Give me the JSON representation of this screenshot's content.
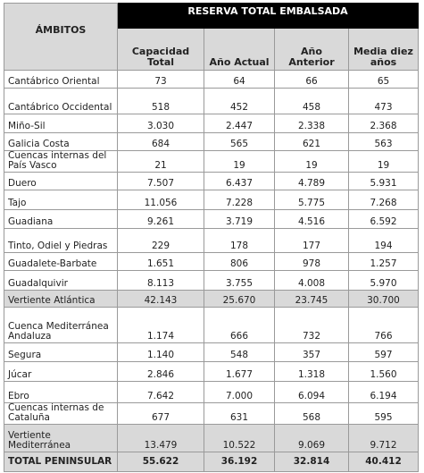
{
  "header": {
    "title": "RESERVA TOTAL EMBALSADA",
    "ambitos": "ÁMBITOS",
    "columns": [
      "Capacidad Total",
      "Año Actual",
      "Año Anterior",
      "Media diez años"
    ]
  },
  "rows": [
    [
      "Cantábrico Oriental",
      "73",
      "64",
      "66",
      "65"
    ],
    [
      "Cantábrico Occidental",
      "518",
      "452",
      "458",
      "473"
    ],
    [
      "Miño-Sil",
      "3.030",
      "2.447",
      "2.338",
      "2.368"
    ],
    [
      "Galicia Costa",
      "684",
      "565",
      "621",
      "563"
    ],
    [
      "Cuencas internas del País Vasco",
      "21",
      "19",
      "19",
      "19"
    ],
    [
      "Duero",
      "7.507",
      "6.437",
      "4.789",
      "5.931"
    ],
    [
      "Tajo",
      "11.056",
      "7.228",
      "5.775",
      "7.268"
    ],
    [
      "Guadiana",
      "9.261",
      "3.719",
      "4.516",
      "6.592"
    ],
    [
      "Tinto, Odiel y Piedras",
      "229",
      "178",
      "177",
      "194"
    ],
    [
      "Guadalete-Barbate",
      "1.651",
      "806",
      "978",
      "1.257"
    ],
    [
      "Guadalquivir",
      "8.113",
      "3.755",
      "4.008",
      "5.970"
    ],
    [
      "Vertiente Atlántica",
      "42.143",
      "25.670",
      "23.745",
      "30.700"
    ],
    [
      "Cuenca Mediterránea Andaluza",
      "1.174",
      "666",
      "732",
      "766"
    ],
    [
      "Segura",
      "1.140",
      "548",
      "357",
      "597"
    ],
    [
      "Júcar",
      "2.846",
      "1.677",
      "1.318",
      "1.560"
    ],
    [
      "Ebro",
      "7.642",
      "7.000",
      "6.094",
      "6.194"
    ],
    [
      "Cuencas internas de Cataluña",
      "677",
      "631",
      "568",
      "595"
    ],
    [
      "Vertiente Mediterránea",
      "13.479",
      "10.522",
      "9.069",
      "9.712"
    ],
    [
      "TOTAL PENINSULAR",
      "55.622",
      "36.192",
      "32.814",
      "40.412"
    ]
  ]
}
